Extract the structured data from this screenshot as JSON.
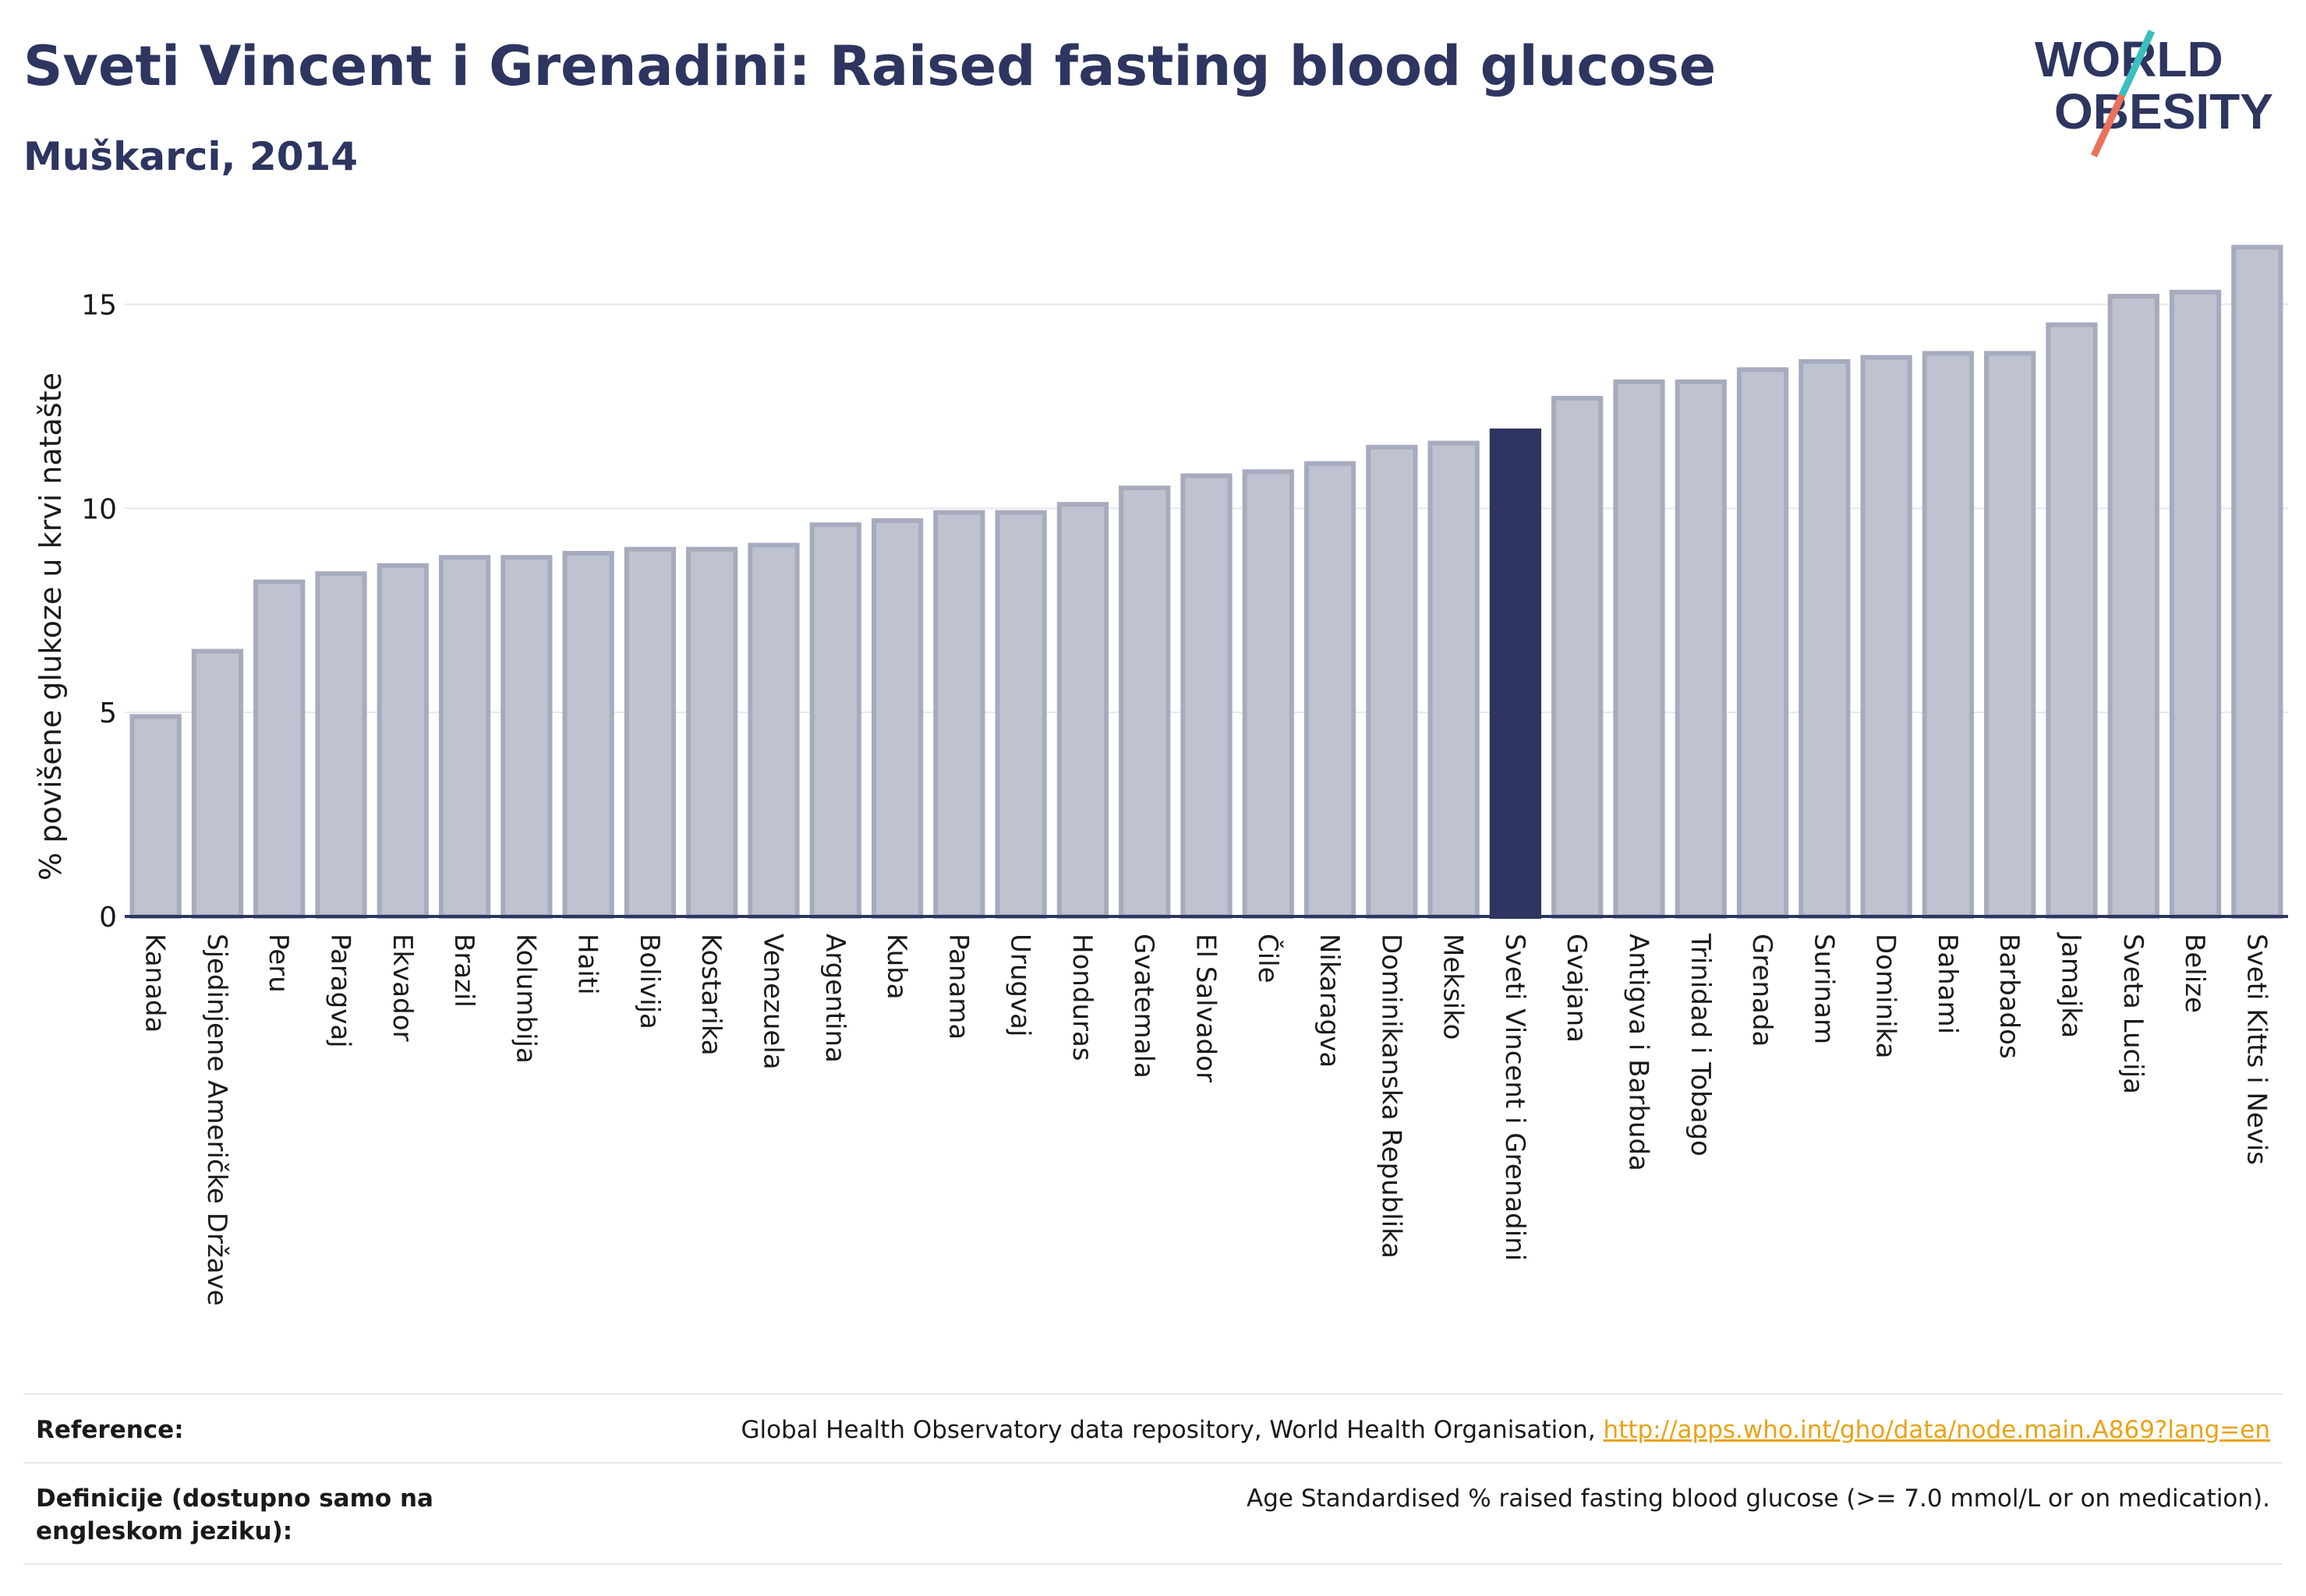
{
  "header": {
    "title": "Sveti Vincent i Grenadini: Raised fasting blood glucose",
    "subtitle": "Muškarci, 2014"
  },
  "logo": {
    "line1": "WORLD",
    "line2": "OBESITY"
  },
  "chart_data": {
    "type": "bar",
    "title": "Sveti Vincent i Grenadini: Raised fasting blood glucose",
    "subtitle": "Muškarci, 2014",
    "xlabel": "",
    "ylabel": "% povišene glukoze u krvi natašte",
    "ylim": [
      0,
      16.5
    ],
    "yticks": [
      0,
      5,
      10,
      15
    ],
    "grid": true,
    "highlight": "Sveti Vincent i Grenadini",
    "colors": {
      "bar": "#bfc2cf",
      "bar_border": "#a7abbe",
      "highlight": "#2d3560",
      "axis": "#2d3560",
      "grid": "#e6e6ec"
    },
    "categories": [
      "Kanada",
      "Sjedinjene Američke Države",
      "Peru",
      "Paragvaj",
      "Ekvador",
      "Brazil",
      "Kolumbija",
      "Haiti",
      "Bolivija",
      "Kostarika",
      "Venezuela",
      "Argentina",
      "Kuba",
      "Panama",
      "Urugvaj",
      "Honduras",
      "Gvatemala",
      "El Salvador",
      "Čile",
      "Nikaragva",
      "Dominikanska Republika",
      "Meksiko",
      "Sveti Vincent i Grenadini",
      "Gvajana",
      "Antigva i Barbuda",
      "Trinidad i Tobago",
      "Grenada",
      "Surinam",
      "Dominika",
      "Bahami",
      "Barbados",
      "Jamajka",
      "Sveta Lucija",
      "Belize",
      "Sveti Kitts i Nevis"
    ],
    "values": [
      4.9,
      6.5,
      8.2,
      8.4,
      8.6,
      8.8,
      8.8,
      8.9,
      9.0,
      9.0,
      9.1,
      9.6,
      9.7,
      9.9,
      9.9,
      10.1,
      10.5,
      10.8,
      10.9,
      11.1,
      11.5,
      11.6,
      11.9,
      12.7,
      13.1,
      13.1,
      13.4,
      13.6,
      13.7,
      13.8,
      13.8,
      14.5,
      15.2,
      15.3,
      16.4
    ]
  },
  "footer": {
    "reference_label": "Reference:",
    "reference_text": "Global Health Observatory data repository, World Health Organisation, ",
    "reference_link": "http://apps.who.int/gho/data/node.main.A869?lang=en",
    "definition_label": "Definicije (dostupno samo na engleskom jeziku):",
    "definition_text": "Age Standardised % raised fasting blood glucose (>= 7.0 mmol/L or on medication)."
  }
}
